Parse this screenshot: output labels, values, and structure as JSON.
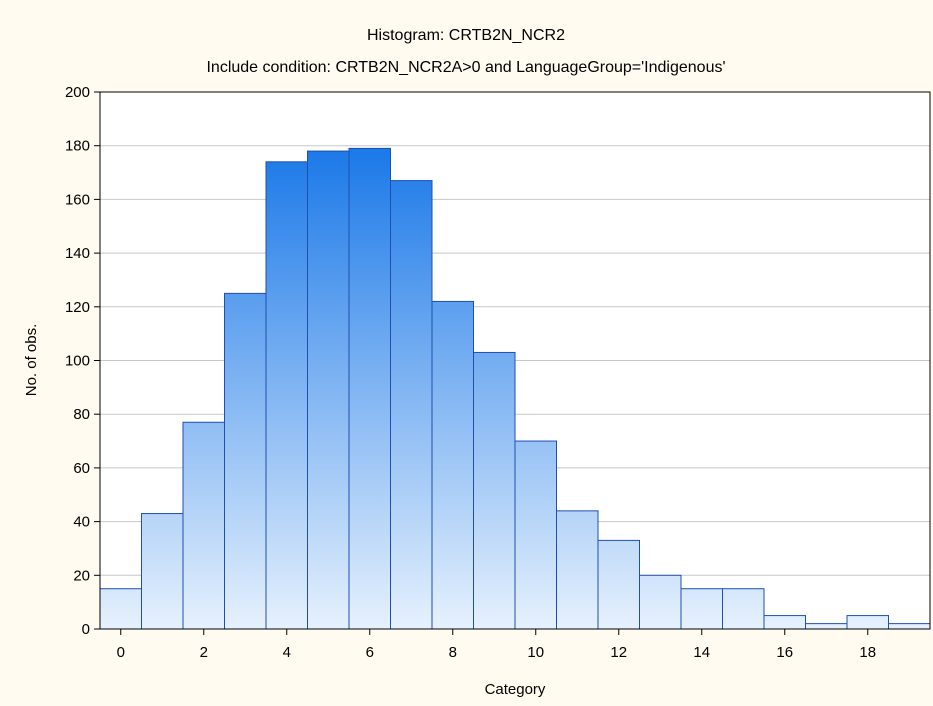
{
  "colors": {
    "background": "#fffbf0",
    "plot_background": "#ffffff",
    "bar_top": "#1a78e8",
    "bar_bottom": "#e6f1fd",
    "bar_stroke": "#1f4fb0",
    "grid": "#c8c8c8"
  },
  "chart_data": {
    "type": "bar",
    "title": "Histogram: CRTB2N_NCR2",
    "subtitle": "Include condition: CRTB2N_NCR2A>0 and LanguageGroup='Indigenous'",
    "xlabel": "Category",
    "ylabel": "No. of obs.",
    "categories": [
      "0",
      "1",
      "2",
      "3",
      "4",
      "5",
      "6",
      "7",
      "8",
      "9",
      "10",
      "11",
      "12",
      "13",
      "14",
      "15",
      "16",
      "17",
      "18",
      "19"
    ],
    "values": [
      15,
      43,
      77,
      125,
      174,
      178,
      179,
      167,
      122,
      103,
      70,
      44,
      33,
      20,
      15,
      15,
      5,
      2,
      5,
      2
    ],
    "xlim": [
      -0.5,
      19.5
    ],
    "ylim": [
      0,
      200
    ],
    "x_ticks": [
      "0",
      "2",
      "4",
      "6",
      "8",
      "10",
      "12",
      "14",
      "16",
      "18"
    ],
    "y_ticks": [
      "0",
      "20",
      "40",
      "60",
      "80",
      "100",
      "120",
      "140",
      "160",
      "180",
      "200"
    ],
    "grid": "horizontal",
    "legend": "none"
  }
}
